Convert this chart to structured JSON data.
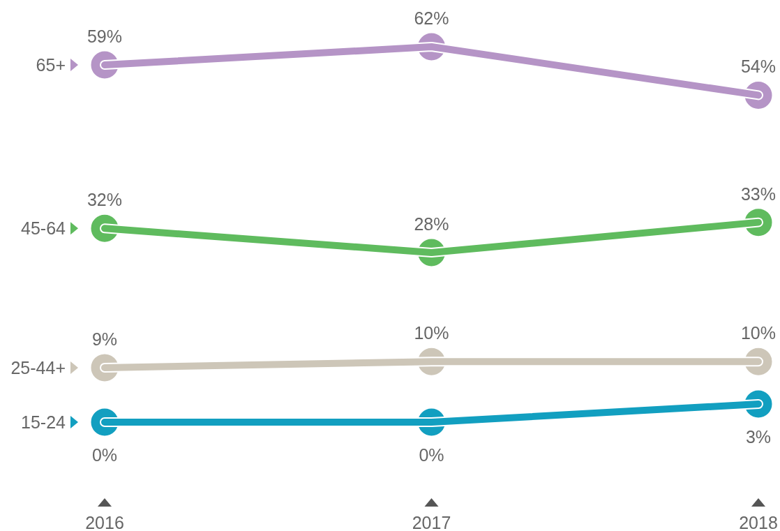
{
  "chart_data": {
    "type": "line",
    "categories": [
      "2016",
      "2017",
      "2018"
    ],
    "series": [
      {
        "name": "65+",
        "color": "#b594c6",
        "values": [
          59,
          62,
          54
        ],
        "value_labels": [
          "59%",
          "62%",
          "54%"
        ]
      },
      {
        "name": "45-64",
        "color": "#5fbb5e",
        "values": [
          32,
          28,
          33
        ],
        "value_labels": [
          "32%",
          "28%",
          "33%"
        ]
      },
      {
        "name": "25-44+",
        "color": "#cdc6b8",
        "values": [
          9,
          10,
          10
        ],
        "value_labels": [
          "9%",
          "10%",
          "10%"
        ]
      },
      {
        "name": "15-24",
        "color": "#129fc0",
        "values": [
          0,
          0,
          3
        ],
        "value_labels": [
          "0%",
          "0%",
          "3%"
        ]
      }
    ],
    "tick_labels": "x",
    "marker": "circle",
    "line_style": "solid",
    "legend": "left"
  }
}
